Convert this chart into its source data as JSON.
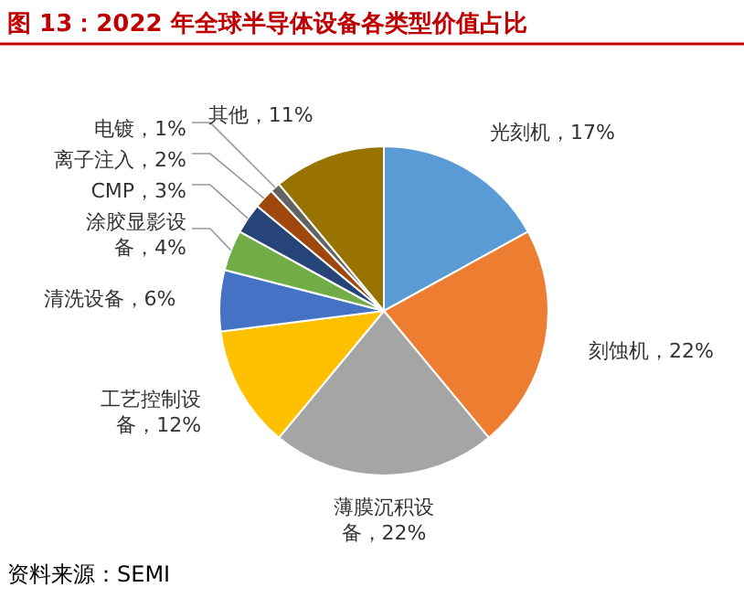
{
  "chart_data": {
    "type": "pie",
    "title": "图 13：2022 年全球半导体设备各类型价值占比",
    "categories": [
      "光刻机",
      "刻蚀机",
      "薄膜沉积设备",
      "工艺控制设备",
      "清洗设备",
      "涂胶显影设备",
      "CMP",
      "离子注入",
      "电镀",
      "其他"
    ],
    "values": [
      17,
      22,
      22,
      12,
      6,
      4,
      3,
      2,
      1,
      11
    ],
    "value_labels": [
      "17%",
      "22%",
      "22%",
      "12%",
      "6%",
      "4%",
      "3%",
      "2%",
      "1%",
      "11%"
    ],
    "colors": [
      "#5b9bd5",
      "#ed7d31",
      "#a5a5a5",
      "#ffc000",
      "#4472c4",
      "#70ad47",
      "#264478",
      "#9e480e",
      "#636363",
      "#997300"
    ],
    "annotations": [
      "资料来源：SEMI"
    ]
  }
}
